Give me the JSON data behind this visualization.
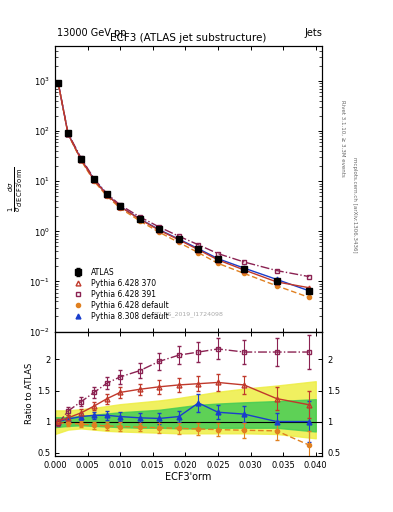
{
  "title_main": "ECF3 (ATLAS jet substructure)",
  "top_left_label": "13000 GeV pp",
  "top_right_label": "Jets",
  "ylabel_main": "1/σ dσ/d ECF3'orm",
  "ylabel_ratio": "Ratio to ATLAS",
  "xlabel": "ECF3'orm",
  "right_label_top": "Rivet 3.1.10, ≥ 3.3M events",
  "right_label_bottom": "mcplots.cern.ch [arXiv:1306.3436]",
  "watermark": "ATLAS_2019_I1724098",
  "x_ecf3": [
    0.0005,
    0.002,
    0.004,
    0.006,
    0.008,
    0.01,
    0.013,
    0.016,
    0.019,
    0.022,
    0.025,
    0.029,
    0.034,
    0.039
  ],
  "atlas_y": [
    900,
    90,
    28,
    11,
    5.5,
    3.2,
    1.8,
    1.1,
    0.7,
    0.45,
    0.28,
    0.18,
    0.1,
    0.065
  ],
  "atlas_yerr": [
    30,
    4,
    1.2,
    0.5,
    0.25,
    0.15,
    0.09,
    0.06,
    0.04,
    0.025,
    0.016,
    0.011,
    0.007,
    0.004
  ],
  "py6_370_y": [
    910,
    88,
    27,
    10.5,
    5.3,
    3.1,
    1.75,
    1.05,
    0.68,
    0.43,
    0.27,
    0.17,
    0.098,
    0.075
  ],
  "py6_391_y": [
    905,
    91,
    29,
    11.2,
    5.6,
    3.35,
    1.95,
    1.22,
    0.8,
    0.54,
    0.36,
    0.245,
    0.165,
    0.125
  ],
  "py6_def_y": [
    885,
    87,
    26,
    10,
    5.0,
    2.9,
    1.62,
    0.96,
    0.6,
    0.375,
    0.23,
    0.145,
    0.082,
    0.048
  ],
  "py8_def_y": [
    905,
    89,
    27.5,
    10.8,
    5.4,
    3.15,
    1.78,
    1.08,
    0.7,
    0.45,
    0.285,
    0.185,
    0.11,
    0.065
  ],
  "ratio_py6_370": [
    1.01,
    1.06,
    1.14,
    1.25,
    1.37,
    1.47,
    1.52,
    1.56,
    1.59,
    1.61,
    1.63,
    1.59,
    1.37,
    1.27
  ],
  "ratio_py6_391": [
    0.97,
    1.17,
    1.32,
    1.47,
    1.62,
    1.72,
    1.82,
    1.97,
    2.07,
    2.12,
    2.17,
    2.12,
    2.12,
    2.12
  ],
  "ratio_py6_def": [
    0.98,
    0.97,
    0.96,
    0.94,
    0.93,
    0.92,
    0.91,
    0.9,
    0.89,
    0.88,
    0.87,
    0.86,
    0.85,
    0.62
  ],
  "ratio_py8_def": [
    1.0,
    1.04,
    1.08,
    1.1,
    1.1,
    1.08,
    1.06,
    1.05,
    1.08,
    1.3,
    1.15,
    1.12,
    1.0,
    1.0
  ],
  "ratio_py6_370_err": [
    0.03,
    0.05,
    0.06,
    0.07,
    0.08,
    0.09,
    0.09,
    0.11,
    0.11,
    0.12,
    0.13,
    0.14,
    0.18,
    0.22
  ],
  "ratio_py6_391_err": [
    0.04,
    0.06,
    0.07,
    0.09,
    0.1,
    0.11,
    0.12,
    0.14,
    0.15,
    0.16,
    0.17,
    0.19,
    0.23,
    0.28
  ],
  "ratio_py6_def_err": [
    0.03,
    0.04,
    0.05,
    0.06,
    0.06,
    0.07,
    0.07,
    0.08,
    0.09,
    0.09,
    0.11,
    0.12,
    0.14,
    0.23
  ],
  "ratio_py8_def_err": [
    0.03,
    0.04,
    0.05,
    0.06,
    0.07,
    0.07,
    0.08,
    0.09,
    0.09,
    0.14,
    0.11,
    0.13,
    0.14,
    0.33
  ],
  "band_x": [
    0.0,
    0.002,
    0.004,
    0.006,
    0.008,
    0.01,
    0.013,
    0.016,
    0.019,
    0.022,
    0.025,
    0.029,
    0.034,
    0.04
  ],
  "yellow_band_lo": [
    0.8,
    0.87,
    0.89,
    0.87,
    0.85,
    0.84,
    0.83,
    0.82,
    0.81,
    0.81,
    0.81,
    0.81,
    0.8,
    0.73
  ],
  "yellow_band_hi": [
    1.18,
    1.18,
    1.2,
    1.22,
    1.25,
    1.28,
    1.31,
    1.34,
    1.38,
    1.43,
    1.48,
    1.53,
    1.58,
    1.65
  ],
  "green_band_lo": [
    0.91,
    0.93,
    0.94,
    0.93,
    0.92,
    0.91,
    0.9,
    0.9,
    0.89,
    0.89,
    0.9,
    0.9,
    0.9,
    0.84
  ],
  "green_band_hi": [
    1.07,
    1.07,
    1.09,
    1.11,
    1.13,
    1.15,
    1.17,
    1.19,
    1.23,
    1.27,
    1.29,
    1.31,
    1.33,
    1.36
  ],
  "color_py6_370": "#c0392b",
  "color_py6_391": "#8b2252",
  "color_py6_def": "#e08020",
  "color_py8_def": "#1a3ecc",
  "color_atlas": "#000000",
  "ylim_main": [
    0.01,
    5000
  ],
  "ylim_ratio": [
    0.45,
    2.45
  ],
  "xlim": [
    0.0,
    0.041
  ]
}
